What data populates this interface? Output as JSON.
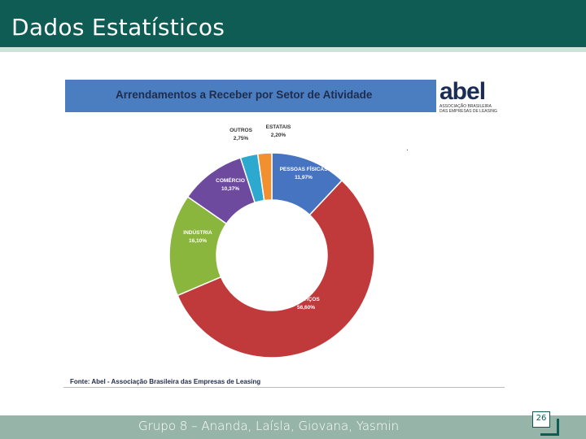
{
  "slide": {
    "title": "Dados Estatísticos",
    "footer": "Grupo 8 – Ananda, Laísla, Giovana, Yasmin",
    "page_number": "26"
  },
  "logo": {
    "word": "abel",
    "line1": "ASSOCIAÇÃO BRASILEIRA",
    "line2": "DAS EMPRESAS DE LEASING"
  },
  "colors": {
    "header": "#0f5c55",
    "banner": "#4a7ec1",
    "servicos": "#c0393b",
    "pessoas_fisicas": "#4674c0",
    "estatais": "#f28f2f",
    "outros": "#2da8cf",
    "comercio": "#6d4a9e",
    "industria": "#8ab63e"
  },
  "chart_data": {
    "type": "pie",
    "title": "Arrendamentos a Receber por Setor de Atividade",
    "source": "Fonte: Abel - Associação Brasileira das Empresas de Leasing",
    "legend": "none",
    "slices": [
      {
        "label": "PESSOAS FÍSICAS",
        "value": 11.97,
        "display": "11,97%",
        "color": "#4674c0"
      },
      {
        "label": "SERVIÇOS",
        "value": 56.6,
        "display": "56,60%",
        "color": "#c0393b"
      },
      {
        "label": "INDÚSTRIA",
        "value": 16.1,
        "display": "16,10%",
        "color": "#8ab63e"
      },
      {
        "label": "COMÉRCIO",
        "value": 10.37,
        "display": "10,37%",
        "color": "#6d4a9e"
      },
      {
        "label": "OUTROS",
        "value": 2.75,
        "display": "2,75%",
        "color": "#2da8cf"
      },
      {
        "label": "ESTATAIS",
        "value": 2.2,
        "display": "2,20%",
        "color": "#f28f2f"
      }
    ],
    "dot_marker": "."
  }
}
